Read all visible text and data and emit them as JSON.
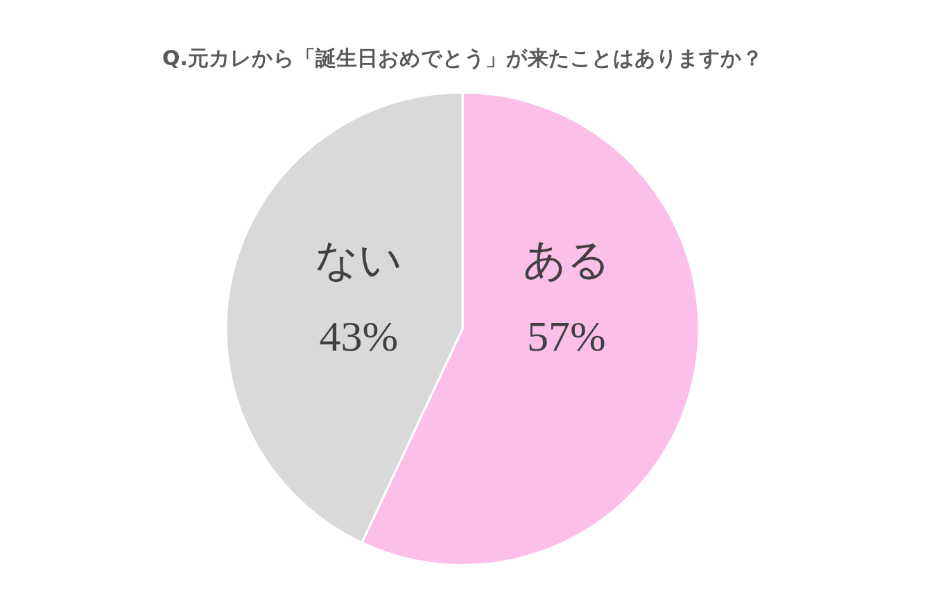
{
  "chart_data": {
    "type": "pie",
    "title": "Q.元カレから「誕生日おめでとう」が来たことはありますか？",
    "categories": [
      "ある",
      "ない"
    ],
    "values": [
      57,
      43
    ],
    "value_labels": [
      "57%",
      "43%"
    ],
    "colors": [
      "#fcc0e8",
      "#d9d9d9"
    ],
    "legend": false
  }
}
